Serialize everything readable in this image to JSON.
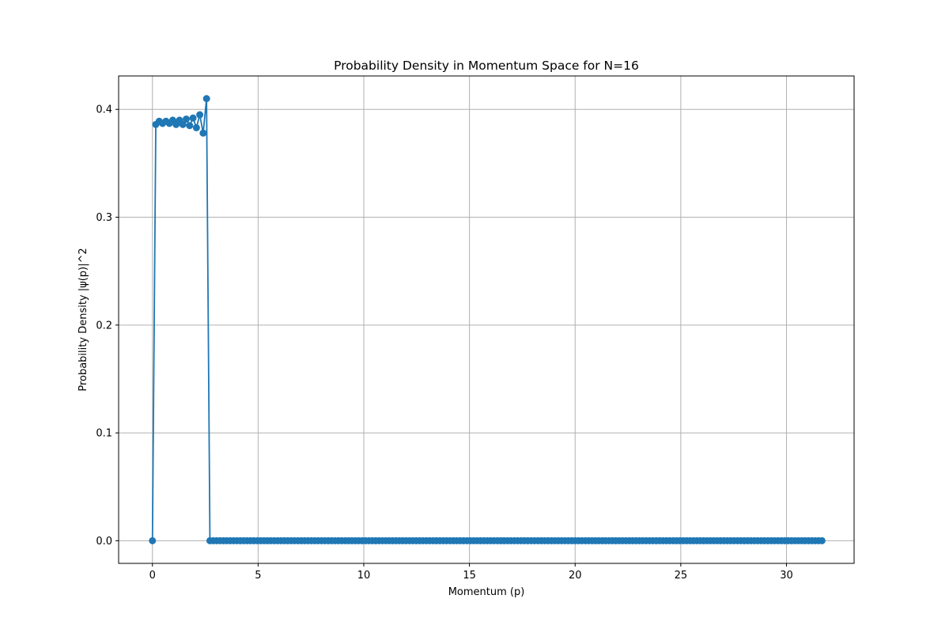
{
  "chart_data": {
    "type": "line",
    "title": "Probability Density in Momentum Space for N=16",
    "xlabel": "Momentum (p)",
    "ylabel": "Probability Density |ψ(p)|^2",
    "xlim": [
      -1.6,
      33.2
    ],
    "ylim": [
      -0.021,
      0.431
    ],
    "xticks": [
      0,
      5,
      10,
      15,
      20,
      25,
      30
    ],
    "xtick_labels": [
      "0",
      "5",
      "10",
      "15",
      "20",
      "25",
      "30"
    ],
    "yticks": [
      0.0,
      0.1,
      0.2,
      0.3,
      0.4
    ],
    "ytick_labels": [
      "0.0",
      "0.1",
      "0.2",
      "0.3",
      "0.4"
    ],
    "grid": true,
    "marker": "circle",
    "series": [
      {
        "color": "#1f77b4",
        "x_start": 0,
        "x_step": 0.16,
        "count": 199,
        "values_head": [
          0.0,
          0.386,
          0.389,
          0.387,
          0.389,
          0.387,
          0.39,
          0.386,
          0.39,
          0.386,
          0.391,
          0.385,
          0.392,
          0.383,
          0.395,
          0.378,
          0.41
        ],
        "tail_value": 0.0
      }
    ]
  }
}
